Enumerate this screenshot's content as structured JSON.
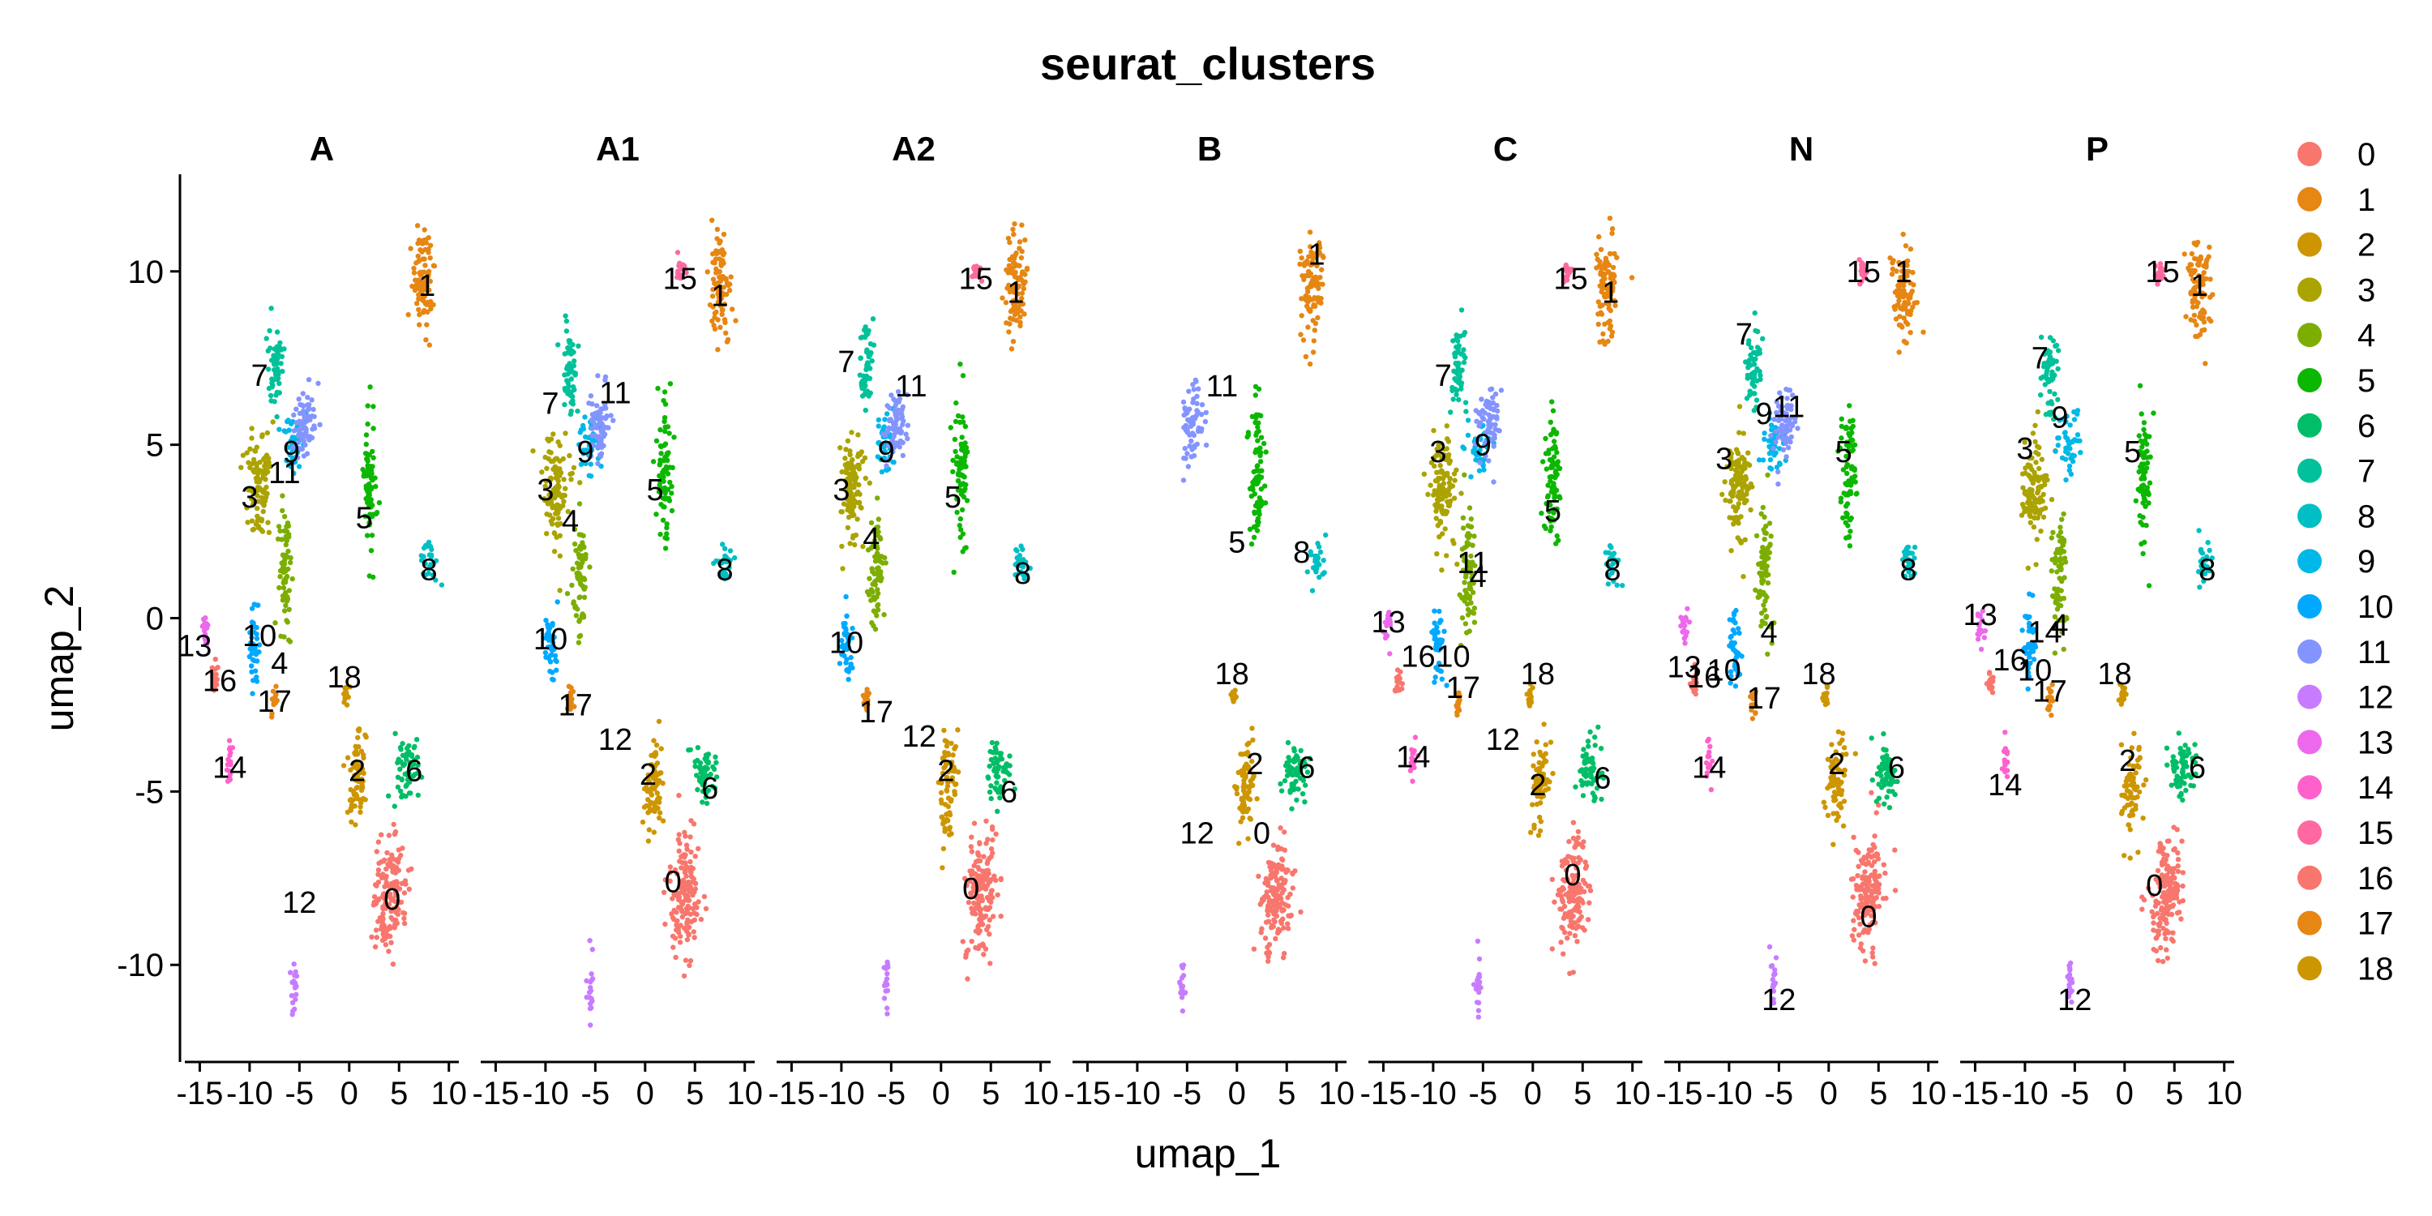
{
  "chart_data": {
    "type": "scatter",
    "title": "seurat_clusters",
    "xlabel": "umap_1",
    "ylabel": "umap_2",
    "xlim": [
      -16.5,
      11
    ],
    "ylim": [
      -12.8,
      12.8
    ],
    "x_ticks": [
      -15,
      -10,
      -5,
      0,
      5,
      10
    ],
    "x_tick_labels": [
      "-15",
      "-10",
      "-5",
      "0",
      "5",
      "10"
    ],
    "y_ticks": [
      -10,
      -5,
      0,
      5,
      10
    ],
    "y_tick_labels": [
      "-10",
      "-5",
      "0",
      "5",
      "10"
    ],
    "grid": false,
    "legend_position": "right",
    "panels": [
      "A",
      "A1",
      "A2",
      "B",
      "C",
      "N",
      "P"
    ],
    "legend": [
      "0",
      "1",
      "2",
      "3",
      "4",
      "5",
      "6",
      "7",
      "8",
      "9",
      "10",
      "11",
      "12",
      "13",
      "14",
      "15",
      "16",
      "17",
      "18"
    ],
    "cluster_colors": [
      "#F8766D",
      "#E68613",
      "#CD9600",
      "#ABA300",
      "#7CAE00",
      "#0CB702",
      "#00BE67",
      "#00C19A",
      "#00BFC4",
      "#00B8E7",
      "#00A9FF",
      "#8494FF",
      "#C77CFF",
      "#ED68ED",
      "#FF61CC",
      "#FF68A1",
      "#F8766D",
      "#E68613",
      "#CD9600"
    ],
    "clusters": [
      {
        "cluster": "0",
        "x": 4.0,
        "y": -8.0,
        "sx": 1.5,
        "sy": 1.8,
        "rot": -0.5
      },
      {
        "cluster": "1",
        "x": 7.5,
        "y": 9.6,
        "sx": 1.1,
        "sy": 1.5,
        "rot": 0.1
      },
      {
        "cluster": "2",
        "x": 0.8,
        "y": -4.8,
        "sx": 0.9,
        "sy": 1.5,
        "rot": -0.3
      },
      {
        "cluster": "3",
        "x": -9.0,
        "y": 3.8,
        "sx": 1.3,
        "sy": 1.5,
        "rot": 0.0
      },
      {
        "cluster": "4",
        "x": -6.5,
        "y": 1.3,
        "sx": 0.7,
        "sy": 1.8,
        "rot": 0.0
      },
      {
        "cluster": "5",
        "x": 2.0,
        "y": 4.2,
        "sx": 0.7,
        "sy": 2.0,
        "rot": 0.0
      },
      {
        "cluster": "6",
        "x": 5.8,
        "y": -4.4,
        "sx": 1.2,
        "sy": 0.9,
        "rot": 0.0
      },
      {
        "cluster": "7",
        "x": -7.5,
        "y": 7.2,
        "sx": 0.8,
        "sy": 1.2,
        "rot": 0.0
      },
      {
        "cluster": "8",
        "x": 8.0,
        "y": 1.6,
        "sx": 0.8,
        "sy": 0.6,
        "rot": 0.0
      },
      {
        "cluster": "9",
        "x": -5.5,
        "y": 5.0,
        "sx": 1.0,
        "sy": 0.8,
        "rot": 0.0
      },
      {
        "cluster": "10",
        "x": -9.5,
        "y": -0.8,
        "sx": 0.6,
        "sy": 1.2,
        "rot": 0.0
      },
      {
        "cluster": "11",
        "x": -4.5,
        "y": 5.6,
        "sx": 1.2,
        "sy": 1.0,
        "rot": 0.6
      },
      {
        "cluster": "12",
        "x": -5.5,
        "y": -10.5,
        "sx": 0.3,
        "sy": 0.9,
        "rot": 0.0
      },
      {
        "cluster": "13",
        "x": -14.5,
        "y": -0.3,
        "sx": 0.4,
        "sy": 0.6,
        "rot": 0.0
      },
      {
        "cluster": "14",
        "x": -12.0,
        "y": -4.2,
        "sx": 0.3,
        "sy": 0.6,
        "rot": 0.0
      },
      {
        "cluster": "15",
        "x": 3.5,
        "y": 10.0,
        "sx": 0.5,
        "sy": 0.3,
        "rot": 0.0
      },
      {
        "cluster": "16",
        "x": -13.5,
        "y": -1.8,
        "sx": 0.3,
        "sy": 0.5,
        "rot": 0.0
      },
      {
        "cluster": "17",
        "x": -7.5,
        "y": -2.4,
        "sx": 0.3,
        "sy": 0.4,
        "rot": 0.0
      },
      {
        "cluster": "18",
        "x": -0.3,
        "y": -2.2,
        "sx": 0.3,
        "sy": 0.3,
        "rot": 0.0
      }
    ],
    "cluster_labels": {
      "A": [
        {
          "text": "0",
          "x": 4.3,
          "y": -8.1
        },
        {
          "text": "1",
          "x": 7.8,
          "y": 9.6
        },
        {
          "text": "2",
          "x": 0.8,
          "y": -4.4
        },
        {
          "text": "3",
          "x": -10.0,
          "y": 3.5
        },
        {
          "text": "4",
          "x": -7.0,
          "y": -1.3
        },
        {
          "text": "5",
          "x": 1.5,
          "y": 2.9
        },
        {
          "text": "6",
          "x": 6.5,
          "y": -4.4
        },
        {
          "text": "7",
          "x": -9.0,
          "y": 7.0
        },
        {
          "text": "8",
          "x": 8.0,
          "y": 1.4
        },
        {
          "text": "9",
          "x": -5.8,
          "y": 4.8
        },
        {
          "text": "10",
          "x": -9.0,
          "y": -0.5
        },
        {
          "text": "11",
          "x": -6.5,
          "y": 4.2
        },
        {
          "text": "12",
          "x": -5.0,
          "y": -8.2
        },
        {
          "text": "13",
          "x": -15.5,
          "y": -0.8
        },
        {
          "text": "14",
          "x": -12.0,
          "y": -4.3
        },
        {
          "text": "16",
          "x": -13.0,
          "y": -1.8
        },
        {
          "text": "17",
          "x": -7.5,
          "y": -2.4
        },
        {
          "text": "18",
          "x": -0.5,
          "y": -1.7
        }
      ],
      "A1": [
        {
          "text": "0",
          "x": 2.8,
          "y": -7.6
        },
        {
          "text": "1",
          "x": 7.5,
          "y": 9.3
        },
        {
          "text": "2",
          "x": 0.3,
          "y": -4.5
        },
        {
          "text": "3",
          "x": -10.0,
          "y": 3.7
        },
        {
          "text": "4",
          "x": -7.5,
          "y": 2.8
        },
        {
          "text": "5",
          "x": 1.0,
          "y": 3.7
        },
        {
          "text": "6",
          "x": 6.5,
          "y": -4.9
        },
        {
          "text": "7",
          "x": -9.5,
          "y": 6.2
        },
        {
          "text": "8",
          "x": 8.0,
          "y": 1.4
        },
        {
          "text": "9",
          "x": -6.0,
          "y": 4.8
        },
        {
          "text": "10",
          "x": -9.5,
          "y": -0.6
        },
        {
          "text": "11",
          "x": -3.0,
          "y": 6.5
        },
        {
          "text": "12",
          "x": -3.0,
          "y": -3.5
        },
        {
          "text": "15",
          "x": 3.5,
          "y": 9.8
        },
        {
          "text": "17",
          "x": -7.0,
          "y": -2.5
        }
      ],
      "A2": [
        {
          "text": "0",
          "x": 3.0,
          "y": -7.8
        },
        {
          "text": "1",
          "x": 7.5,
          "y": 9.4
        },
        {
          "text": "2",
          "x": 0.5,
          "y": -4.4
        },
        {
          "text": "3",
          "x": -10.0,
          "y": 3.7
        },
        {
          "text": "4",
          "x": -7.0,
          "y": 2.3
        },
        {
          "text": "5",
          "x": 1.2,
          "y": 3.5
        },
        {
          "text": "6",
          "x": 6.8,
          "y": -5.0
        },
        {
          "text": "7",
          "x": -9.5,
          "y": 7.4
        },
        {
          "text": "8",
          "x": 8.2,
          "y": 1.3
        },
        {
          "text": "9",
          "x": -5.5,
          "y": 4.8
        },
        {
          "text": "10",
          "x": -9.5,
          "y": -0.7
        },
        {
          "text": "11",
          "x": -3.0,
          "y": 6.7
        },
        {
          "text": "12",
          "x": -2.2,
          "y": -3.4
        },
        {
          "text": "15",
          "x": 3.5,
          "y": 9.8
        },
        {
          "text": "17",
          "x": -6.5,
          "y": -2.7
        }
      ],
      "B": [
        {
          "text": "0",
          "x": 2.5,
          "y": -6.2
        },
        {
          "text": "1",
          "x": 8.0,
          "y": 10.5
        },
        {
          "text": "2",
          "x": 1.8,
          "y": -4.2
        },
        {
          "text": "5",
          "x": 0.0,
          "y": 2.2
        },
        {
          "text": "6",
          "x": 7.0,
          "y": -4.3
        },
        {
          "text": "8",
          "x": 6.5,
          "y": 1.9
        },
        {
          "text": "11",
          "x": -1.5,
          "y": 6.7
        },
        {
          "text": "12",
          "x": -4.0,
          "y": -6.2
        },
        {
          "text": "18",
          "x": -0.5,
          "y": -1.6
        }
      ],
      "C": [
        {
          "text": "0",
          "x": 4.0,
          "y": -7.4
        },
        {
          "text": "1",
          "x": 7.8,
          "y": 9.4
        },
        {
          "text": "2",
          "x": 0.5,
          "y": -4.8
        },
        {
          "text": "3",
          "x": -9.5,
          "y": 4.8
        },
        {
          "text": "4",
          "x": -5.5,
          "y": 1.2
        },
        {
          "text": "5",
          "x": 2.0,
          "y": 3.1
        },
        {
          "text": "6",
          "x": 7.0,
          "y": -4.6
        },
        {
          "text": "7",
          "x": -9.0,
          "y": 7.0
        },
        {
          "text": "8",
          "x": 8.0,
          "y": 1.4
        },
        {
          "text": "9",
          "x": -5.0,
          "y": 5.0
        },
        {
          "text": "10",
          "x": -8.0,
          "y": -1.1
        },
        {
          "text": "11",
          "x": -6.0,
          "y": 1.6
        },
        {
          "text": "12",
          "x": -3.0,
          "y": -3.5
        },
        {
          "text": "13",
          "x": -14.5,
          "y": -0.1
        },
        {
          "text": "14",
          "x": -12.0,
          "y": -4.0
        },
        {
          "text": "15",
          "x": 3.8,
          "y": 9.8
        },
        {
          "text": "16",
          "x": -11.5,
          "y": -1.1
        },
        {
          "text": "17",
          "x": -7.0,
          "y": -2.0
        },
        {
          "text": "18",
          "x": 0.5,
          "y": -1.6
        }
      ],
      "N": [
        {
          "text": "0",
          "x": 4.0,
          "y": -8.6
        },
        {
          "text": "1",
          "x": 7.5,
          "y": 10.0
        },
        {
          "text": "2",
          "x": 0.8,
          "y": -4.2
        },
        {
          "text": "3",
          "x": -10.5,
          "y": 4.6
        },
        {
          "text": "4",
          "x": -6.0,
          "y": -0.4
        },
        {
          "text": "5",
          "x": 1.5,
          "y": 4.8
        },
        {
          "text": "6",
          "x": 6.8,
          "y": -4.3
        },
        {
          "text": "7",
          "x": -8.5,
          "y": 8.2
        },
        {
          "text": "8",
          "x": 8.0,
          "y": 1.4
        },
        {
          "text": "9",
          "x": -6.5,
          "y": 5.9
        },
        {
          "text": "10",
          "x": -10.5,
          "y": -1.5
        },
        {
          "text": "11",
          "x": -4.0,
          "y": 6.1
        },
        {
          "text": "12",
          "x": -5.0,
          "y": -11.0
        },
        {
          "text": "13",
          "x": -14.5,
          "y": -1.4
        },
        {
          "text": "14",
          "x": -12.0,
          "y": -4.3
        },
        {
          "text": "15",
          "x": 3.5,
          "y": 10.0
        },
        {
          "text": "16",
          "x": -12.5,
          "y": -1.7
        },
        {
          "text": "17",
          "x": -6.5,
          "y": -2.3
        },
        {
          "text": "18",
          "x": -1.0,
          "y": -1.6
        }
      ],
      "P": [
        {
          "text": "0",
          "x": 3.0,
          "y": -7.7
        },
        {
          "text": "1",
          "x": 7.5,
          "y": 9.6
        },
        {
          "text": "2",
          "x": 0.3,
          "y": -4.1
        },
        {
          "text": "3",
          "x": -10.0,
          "y": 4.9
        },
        {
          "text": "4",
          "x": -6.5,
          "y": -0.2
        },
        {
          "text": "5",
          "x": 0.8,
          "y": 4.8
        },
        {
          "text": "6",
          "x": 7.3,
          "y": -4.3
        },
        {
          "text": "7",
          "x": -8.5,
          "y": 7.5
        },
        {
          "text": "8",
          "x": 8.3,
          "y": 1.4
        },
        {
          "text": "9",
          "x": -6.5,
          "y": 5.8
        },
        {
          "text": "10",
          "x": -9.0,
          "y": -1.5
        },
        {
          "text": "12",
          "x": -5.0,
          "y": -11.0
        },
        {
          "text": "13",
          "x": -14.5,
          "y": 0.1
        },
        {
          "text": "14",
          "x": -8.0,
          "y": -0.4
        },
        {
          "text": "15",
          "x": 3.8,
          "y": 10.0
        },
        {
          "text": "14",
          "x": -12.0,
          "y": -4.8
        },
        {
          "text": "16",
          "x": -11.5,
          "y": -1.2
        },
        {
          "text": "17",
          "x": -7.5,
          "y": -2.1
        },
        {
          "text": "18",
          "x": -1.0,
          "y": -1.6
        }
      ]
    }
  }
}
